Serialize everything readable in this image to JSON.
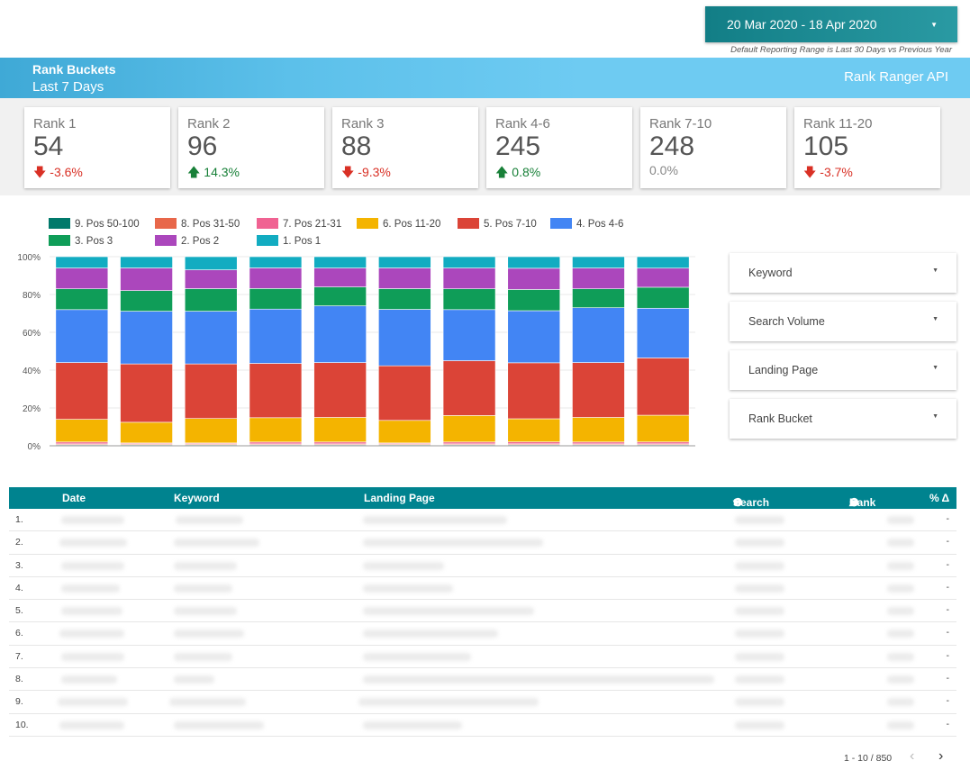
{
  "date_range": {
    "label": "20 Mar 2020 - 18 Apr 2020",
    "note": "Default Reporting Range is Last 30 Days vs Previous Year"
  },
  "header": {
    "title": "Rank Buckets",
    "subtitle": "Last 7 Days",
    "api_label": "Rank Ranger API",
    "colors": {
      "band_start": "#3fa9d6",
      "band_end": "#6ecbf2"
    }
  },
  "scorecards": [
    {
      "label": "Rank 1",
      "value": "54",
      "delta": "-3.6%",
      "trend": "down"
    },
    {
      "label": "Rank 2",
      "value": "96",
      "delta": "14.3%",
      "trend": "up"
    },
    {
      "label": "Rank 3",
      "value": "88",
      "delta": "-9.3%",
      "trend": "down"
    },
    {
      "label": "Rank 4-6",
      "value": "245",
      "delta": "0.8%",
      "trend": "up"
    },
    {
      "label": "Rank 7-10",
      "value": "248",
      "delta": "0.0%",
      "trend": "none"
    },
    {
      "label": "Rank 11-20",
      "value": "105",
      "delta": "-3.7%",
      "trend": "down"
    }
  ],
  "chart_data": {
    "type": "bar",
    "stacked": true,
    "normalized": true,
    "y_ticks": [
      "0%",
      "20%",
      "40%",
      "60%",
      "80%",
      "100%"
    ],
    "ylim": [
      0,
      100
    ],
    "grid": true,
    "legend_position": "top-left",
    "categories_hidden": true,
    "series": [
      {
        "name": "1. Pos 1",
        "color": "#12acc1",
        "values": [
          6,
          6,
          7,
          6,
          6,
          6,
          6,
          6,
          6,
          6
        ]
      },
      {
        "name": "2. Pos 2",
        "color": "#ab47bc",
        "values": [
          11,
          12,
          10,
          11,
          10,
          11,
          11,
          11,
          11,
          10
        ]
      },
      {
        "name": "3. Pos 3",
        "color": "#0f9d58",
        "values": [
          11,
          11,
          12,
          11,
          10,
          11,
          11,
          11,
          10,
          11
        ]
      },
      {
        "name": "4. Pos 4-6",
        "color": "#4285f4",
        "values": [
          28,
          28,
          28,
          29,
          30,
          30,
          27,
          27,
          29,
          26
        ]
      },
      {
        "name": "5. Pos 7-10",
        "color": "#db4437",
        "values": [
          30,
          31,
          29,
          29,
          29,
          29,
          29,
          29,
          29,
          30
        ]
      },
      {
        "name": "6. Pos 11-20",
        "color": "#f4b400",
        "values": [
          12,
          11,
          13,
          13,
          13,
          12,
          14,
          12,
          13,
          14
        ]
      },
      {
        "name": "7. Pos 21-31",
        "color": "#f06292",
        "values": [
          1,
          0.5,
          0.5,
          1,
          1,
          0.5,
          1,
          1,
          1,
          1
        ]
      },
      {
        "name": "8. Pos 31-50",
        "color": "#e8674a",
        "values": [
          0.5,
          0.5,
          0.5,
          0.5,
          0.5,
          0.5,
          0.5,
          0.5,
          0.5,
          0.5
        ]
      },
      {
        "name": "9. Pos 50-100",
        "color": "#00796b",
        "values": [
          0.5,
          0.5,
          0.5,
          0.5,
          0.5,
          0.5,
          0.5,
          0.5,
          0.5,
          0.5
        ]
      }
    ],
    "legend_order": [
      "9. Pos 50-100",
      "8. Pos 31-50",
      "7. Pos 21-31",
      "6. Pos 11-20",
      "5. Pos 7-10",
      "4. Pos 4-6",
      "3. Pos 3",
      "2. Pos 2",
      "1. Pos 1"
    ]
  },
  "filters": [
    {
      "label": "Keyword"
    },
    {
      "label": "Search Volume"
    },
    {
      "label": "Landing Page"
    },
    {
      "label": "Rank Bucket"
    }
  ],
  "table": {
    "header_color": "#00838f",
    "columns": [
      "Date",
      "Keyword",
      "Landing Page",
      "Search Vol",
      "Rank",
      "% Δ"
    ],
    "rows": [
      {
        "num": "1.",
        "change": "-"
      },
      {
        "num": "2.",
        "change": "-"
      },
      {
        "num": "3.",
        "change": "-"
      },
      {
        "num": "4.",
        "change": "-"
      },
      {
        "num": "5.",
        "change": "-"
      },
      {
        "num": "6.",
        "change": "-"
      },
      {
        "num": "7.",
        "change": "-"
      },
      {
        "num": "8.",
        "change": "-"
      },
      {
        "num": "9.",
        "change": "-"
      },
      {
        "num": "10.",
        "change": "-"
      }
    ],
    "pagination": "1 - 10 / 850"
  }
}
